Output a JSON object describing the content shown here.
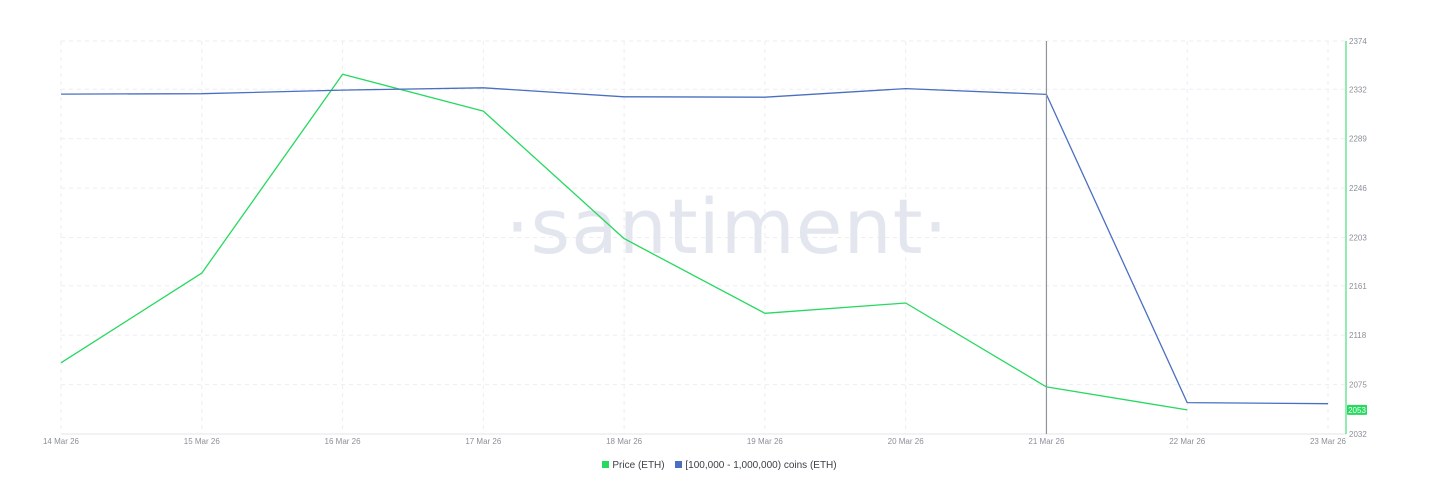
{
  "watermark": "·santiment·",
  "chart_data": {
    "type": "line",
    "x": [
      "14 Mar 26",
      "15 Mar 26",
      "16 Mar 26",
      "17 Mar 26",
      "18 Mar 26",
      "19 Mar 26",
      "20 Mar 26",
      "21 Mar 26",
      "22 Mar 26",
      "23 Mar 26"
    ],
    "series": [
      {
        "name": "Price (ETH)",
        "color": "#26d95f",
        "axis": "right",
        "values": [
          2094,
          2172,
          2345,
          2313,
          2202,
          2137,
          2146,
          2073,
          2053,
          null
        ]
      },
      {
        "name": "[100,000  - 1,000,000) coins (ETH)",
        "color": "#4a6fc1",
        "axis": "hidden",
        "values": [
          0.865,
          0.866,
          0.875,
          0.881,
          0.858,
          0.857,
          0.879,
          0.864,
          0.08,
          0.077
        ]
      }
    ],
    "y_right_ticks": [
      "2374",
      "2332",
      "2289",
      "2246",
      "2203",
      "2161",
      "2118",
      "2075",
      "2032"
    ],
    "y_right_range": [
      2032,
      2374
    ],
    "current_value_label": "2053",
    "crosshair_x": "21 Mar 26",
    "grid": true,
    "legend_position": "bottom-center"
  }
}
